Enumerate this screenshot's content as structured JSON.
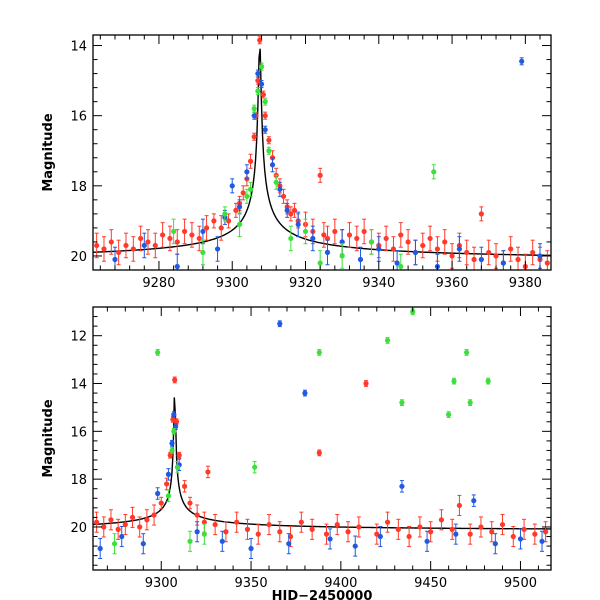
{
  "chart_data": [
    {
      "type": "scatter",
      "panel": "top",
      "ylabel": "Magnitude",
      "xlabel": "",
      "xlim": [
        9262,
        9387
      ],
      "ylim": [
        20.4,
        13.7
      ],
      "y_inverted": true,
      "xticks": [
        9280,
        9300,
        9320,
        9340,
        9360,
        9380
      ],
      "yticks": [
        14,
        16,
        18,
        20
      ],
      "colors": {
        "blue": "#1f5ae0",
        "green": "#3ce03c",
        "red": "#ff3a2a",
        "model": "#000000"
      },
      "model_curve": {
        "name": "model",
        "t0": 9307.5,
        "peak": 13.85,
        "base": 20.2,
        "tau": 19
      },
      "series": [
        {
          "name": "red",
          "x": [
            9263,
            9265,
            9267,
            9269,
            9271,
            9273,
            9275,
            9277,
            9279,
            9281,
            9283,
            9285,
            9287,
            9289,
            9291,
            9293,
            9295,
            9297,
            9299,
            9301,
            9302,
            9303,
            9304,
            9305,
            9306,
            9306.5,
            9307,
            9307.5,
            9308,
            9308.5,
            9309,
            9310,
            9311,
            9312,
            9313,
            9314,
            9315,
            9316,
            9317,
            9318,
            9320,
            9322,
            9324,
            9325,
            9326,
            9328,
            9330,
            9332,
            9334,
            9336,
            9338,
            9340,
            9342,
            9344,
            9346,
            9348,
            9350,
            9352,
            9354,
            9356,
            9358,
            9360,
            9362,
            9364,
            9366,
            9368,
            9370,
            9372,
            9374,
            9376,
            9378,
            9380,
            9382,
            9384,
            9386
          ],
          "y": [
            19.7,
            19.8,
            19.6,
            19.9,
            19.7,
            19.8,
            19.5,
            19.6,
            19.7,
            19.4,
            19.5,
            19.6,
            19.3,
            19.4,
            19.5,
            19.2,
            19.0,
            19.2,
            19.0,
            18.7,
            18.5,
            18.2,
            17.8,
            17.3,
            16.6,
            16.0,
            15.0,
            13.85,
            14.6,
            15.4,
            16.0,
            16.7,
            17.2,
            17.7,
            18.0,
            18.3,
            18.6,
            18.8,
            18.7,
            19.0,
            19.1,
            19.3,
            17.7,
            19.4,
            19.5,
            19.3,
            19.6,
            19.4,
            19.5,
            19.3,
            19.6,
            19.7,
            19.5,
            19.8,
            19.4,
            19.6,
            19.9,
            19.7,
            19.5,
            19.8,
            19.6,
            20.0,
            19.7,
            19.9,
            20.1,
            18.8,
            19.9,
            20.0,
            20.2,
            19.8,
            20.1,
            20.3,
            19.9,
            20.1,
            20.2
          ]
        },
        {
          "name": "blue",
          "x": [
            9268,
            9276,
            9285,
            9292,
            9296,
            9298,
            9300,
            9302,
            9304,
            9306,
            9307,
            9308,
            9309,
            9311,
            9313,
            9315,
            9318,
            9322,
            9326,
            9330,
            9335,
            9340,
            9345,
            9350,
            9356,
            9362,
            9368,
            9374,
            9379,
            9384
          ],
          "y": [
            20.1,
            19.7,
            20.3,
            19.3,
            19.8,
            18.9,
            18.0,
            18.6,
            17.6,
            16.0,
            14.8,
            15.1,
            16.4,
            17.4,
            18.1,
            18.7,
            19.1,
            19.5,
            19.9,
            19.6,
            20.1,
            19.8,
            20.2,
            19.9,
            20.3,
            19.8,
            20.1,
            20.2,
            14.45,
            20.0
          ]
        },
        {
          "name": "green",
          "x": [
            9284,
            9292,
            9298,
            9302,
            9304,
            9305,
            9306,
            9307,
            9308,
            9309,
            9310,
            9312,
            9316,
            9320,
            9324,
            9330,
            9338,
            9346,
            9355
          ],
          "y": [
            19.3,
            19.9,
            18.8,
            19.1,
            18.3,
            18.1,
            15.8,
            15.3,
            14.6,
            15.6,
            17.0,
            17.9,
            19.5,
            19.3,
            20.2,
            20.0,
            19.6,
            20.3,
            17.6
          ]
        }
      ]
    },
    {
      "type": "scatter",
      "panel": "bottom",
      "ylabel": "Magnitude",
      "xlabel": "HJD−2450000",
      "xlim": [
        9262,
        9517
      ],
      "ylim": [
        21.8,
        10.8
      ],
      "y_inverted": true,
      "xticks": [
        9300,
        9350,
        9400,
        9450,
        9500
      ],
      "yticks": [
        12,
        14,
        16,
        18,
        20
      ],
      "colors": {
        "blue": "#1f5ae0",
        "green": "#3ce03c",
        "red": "#ff3a2a",
        "model": "#000000"
      },
      "model_curve": {
        "name": "model",
        "t0": 9307.5,
        "peak": 13.85,
        "base": 20.2,
        "tau": 19
      },
      "series": [
        {
          "name": "red",
          "x": [
            9264,
            9268,
            9272,
            9276,
            9280,
            9284,
            9288,
            9292,
            9296,
            9300,
            9303,
            9305,
            9306.5,
            9307.5,
            9308.5,
            9310,
            9313,
            9316,
            9320,
            9324,
            9326,
            9330,
            9336,
            9342,
            9348,
            9354,
            9360,
            9366,
            9372,
            9378,
            9384,
            9388,
            9392,
            9398,
            9404,
            9410,
            9414,
            9420,
            9426,
            9432,
            9438,
            9444,
            9450,
            9456,
            9462,
            9466,
            9472,
            9478,
            9484,
            9490,
            9496,
            9502,
            9508,
            9514
          ],
          "y": [
            19.8,
            20.0,
            19.7,
            20.1,
            19.9,
            19.6,
            20.0,
            19.7,
            19.5,
            19.0,
            18.2,
            17.0,
            15.5,
            13.85,
            15.6,
            17.0,
            18.3,
            19.0,
            19.5,
            19.8,
            17.7,
            19.9,
            20.2,
            19.8,
            20.1,
            20.3,
            19.9,
            20.2,
            20.4,
            19.8,
            20.1,
            16.9,
            20.3,
            19.9,
            20.2,
            20.0,
            14.0,
            20.3,
            19.8,
            20.1,
            20.4,
            20.0,
            20.2,
            19.7,
            20.1,
            19.1,
            20.3,
            20.0,
            20.2,
            19.9,
            20.4,
            20.1,
            20.3,
            20.2
          ]
        },
        {
          "name": "blue",
          "x": [
            9266,
            9278,
            9290,
            9298,
            9304,
            9306,
            9307,
            9308,
            9310,
            9320,
            9334,
            9350,
            9366,
            9371,
            9380,
            9394,
            9408,
            9422,
            9434,
            9448,
            9464,
            9474,
            9486,
            9500,
            9512
          ],
          "y": [
            20.9,
            20.4,
            20.7,
            18.6,
            17.8,
            16.5,
            15.3,
            15.8,
            17.4,
            20.2,
            20.6,
            20.9,
            11.5,
            20.7,
            14.4,
            20.5,
            20.8,
            20.4,
            18.3,
            20.6,
            20.3,
            18.9,
            20.7,
            20.5,
            20.6
          ]
        },
        {
          "name": "green",
          "x": [
            9274,
            9298,
            9304,
            9306,
            9307,
            9309,
            9316,
            9324,
            9352,
            9388,
            9426,
            9434,
            9440,
            9460,
            9463,
            9470,
            9472,
            9482
          ],
          "y": [
            20.7,
            12.7,
            18.7,
            16.8,
            16.0,
            17.5,
            20.6,
            20.3,
            17.5,
            12.7,
            12.2,
            14.8,
            11.0,
            15.3,
            13.9,
            12.7,
            14.8,
            13.9
          ]
        }
      ]
    }
  ]
}
